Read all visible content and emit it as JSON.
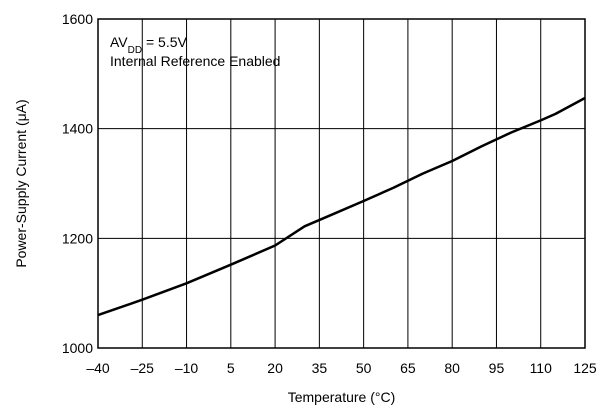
{
  "chart_data": {
    "type": "line",
    "xlabel": "Temperature (°C)",
    "ylabel": "Power-Supply Current (μA)",
    "xlim": [
      -40,
      125
    ],
    "ylim": [
      1000,
      1600
    ],
    "x_ticks": [
      -40,
      -25,
      -10,
      5,
      20,
      35,
      50,
      65,
      80,
      95,
      110,
      125
    ],
    "x_tick_labels": [
      "–40",
      "–25",
      "–10",
      "5",
      "20",
      "35",
      "50",
      "65",
      "80",
      "95",
      "110",
      "125"
    ],
    "y_ticks": [
      1000,
      1200,
      1400,
      1600
    ],
    "y_tick_labels": [
      "1000",
      "1200",
      "1400",
      "1600"
    ],
    "grid": true,
    "annotation": {
      "line1_main": "AV",
      "line1_sub": "DD",
      "line1_rest": " = 5.5V",
      "line2": "Internal Reference Enabled"
    },
    "series": [
      {
        "x": [
          -40,
          -25,
          -10,
          5,
          20,
          30,
          40,
          50,
          60,
          70,
          80,
          90,
          100,
          110,
          115,
          125
        ],
        "y": [
          1060,
          1088,
          1118,
          1152,
          1187,
          1222,
          1245,
          1268,
          1292,
          1318,
          1341,
          1368,
          1393,
          1415,
          1427,
          1456
        ]
      }
    ]
  }
}
